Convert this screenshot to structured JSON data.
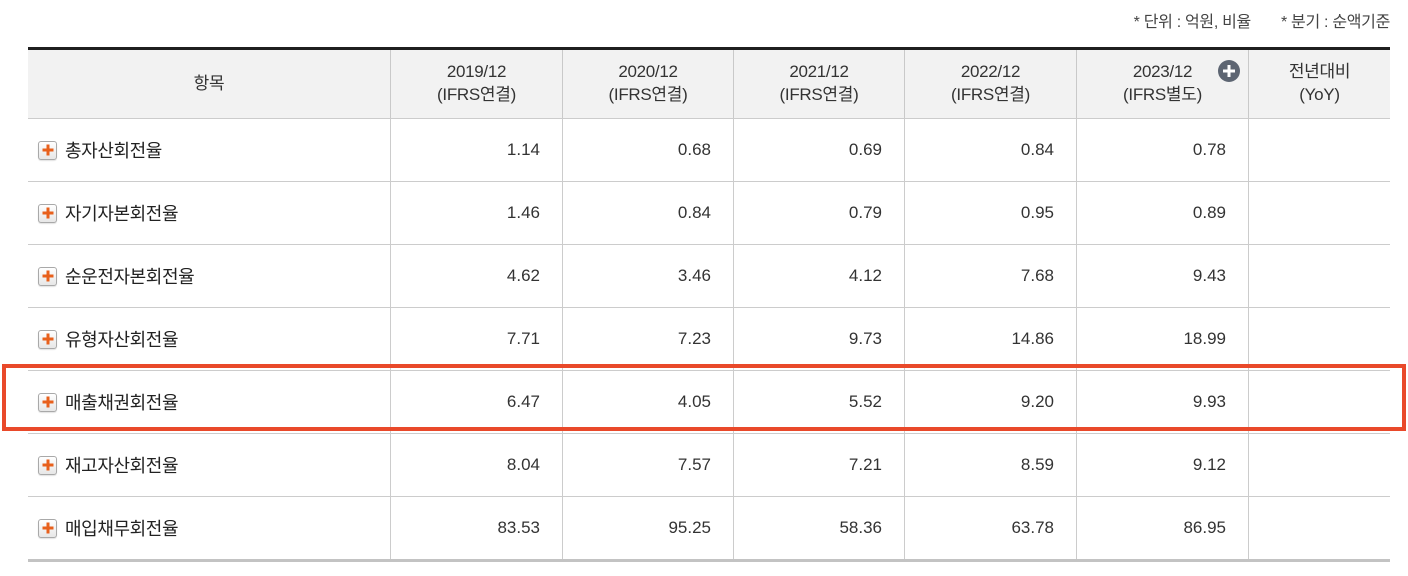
{
  "notes": {
    "unit": "* 단위 : 억원, 비율",
    "basis": "* 분기 : 순액기준"
  },
  "table": {
    "columns": {
      "item_header": "항목",
      "periods": [
        {
          "period": "2019/12",
          "standard": "(IFRS연결)"
        },
        {
          "period": "2020/12",
          "standard": "(IFRS연결)"
        },
        {
          "period": "2021/12",
          "standard": "(IFRS연결)"
        },
        {
          "period": "2022/12",
          "standard": "(IFRS연결)"
        },
        {
          "period": "2023/12",
          "standard": "(IFRS별도)",
          "has_add_icon": true
        }
      ],
      "yoy": {
        "line1": "전년대비",
        "line2": "(YoY)"
      }
    },
    "rows": [
      {
        "label": "총자산회전율",
        "values": [
          "1.14",
          "0.68",
          "0.69",
          "0.84",
          "0.78"
        ],
        "yoy": "",
        "highlighted": false
      },
      {
        "label": "자기자본회전율",
        "values": [
          "1.46",
          "0.84",
          "0.79",
          "0.95",
          "0.89"
        ],
        "yoy": "",
        "highlighted": false
      },
      {
        "label": "순운전자본회전율",
        "values": [
          "4.62",
          "3.46",
          "4.12",
          "7.68",
          "9.43"
        ],
        "yoy": "",
        "highlighted": false
      },
      {
        "label": "유형자산회전율",
        "values": [
          "7.71",
          "7.23",
          "9.73",
          "14.86",
          "18.99"
        ],
        "yoy": "",
        "highlighted": false
      },
      {
        "label": "매출채권회전율",
        "values": [
          "6.47",
          "4.05",
          "5.52",
          "9.20",
          "9.93"
        ],
        "yoy": "",
        "highlighted": true
      },
      {
        "label": "재고자산회전율",
        "values": [
          "8.04",
          "7.57",
          "7.21",
          "8.59",
          "9.12"
        ],
        "yoy": "",
        "highlighted": false
      },
      {
        "label": "매입채무회전율",
        "values": [
          "83.53",
          "95.25",
          "58.36",
          "63.78",
          "86.95"
        ],
        "yoy": "",
        "highlighted": false
      }
    ]
  },
  "colors": {
    "highlight_border": "#e9492a",
    "row_plus_icon": "#e8601c",
    "header_plus_circle": "#5d6572",
    "header_background": "#f2f2f2",
    "table_top_border": "#1f1f1f"
  },
  "icons": {
    "row_expand": "plus-icon",
    "header_add": "circle-plus-icon"
  }
}
